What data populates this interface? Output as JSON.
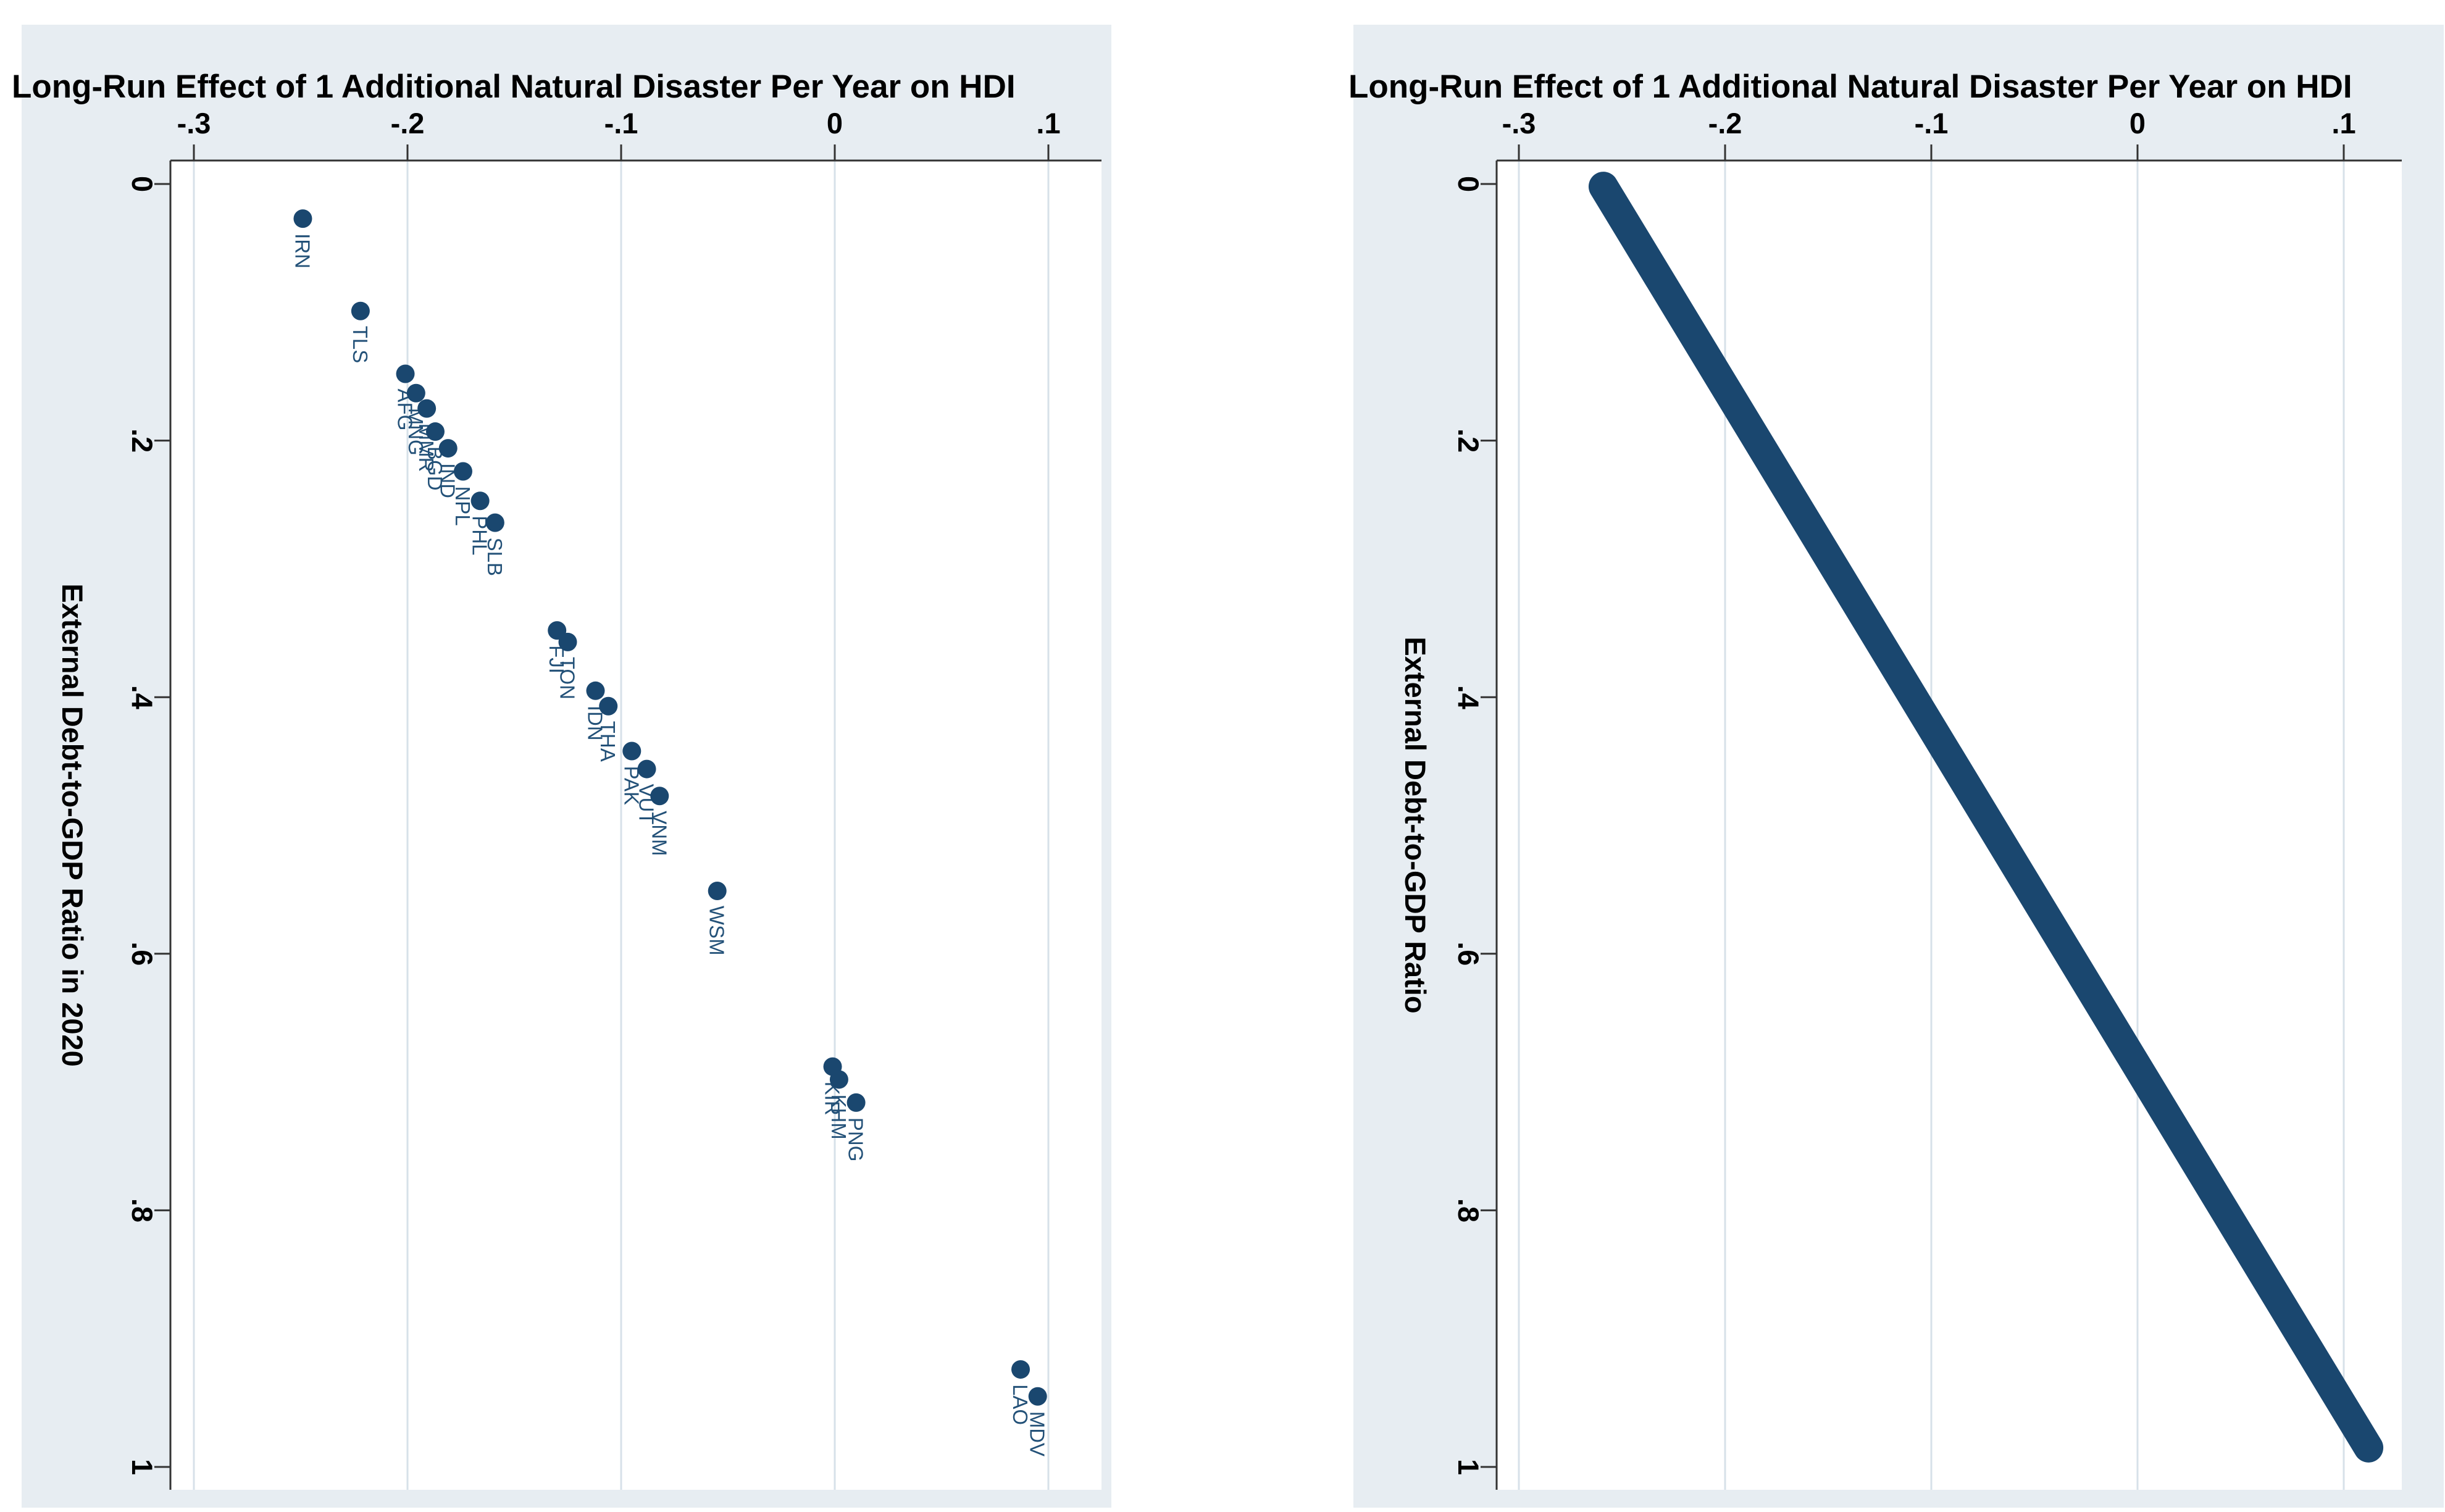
{
  "chart_data": [
    {
      "type": "scatter",
      "panel": "left",
      "title": "Long-Run Effect of 1 Additional Natural Disaster Per Year on HDI",
      "xlabel": "",
      "ylabel": "External Debt-to-GDP Ratio in 2020",
      "x_axis_position": "top",
      "y_axis_direction": "increases-downward",
      "xlim": [
        -0.312,
        0.125
      ],
      "ylim": [
        -0.02,
        1.015
      ],
      "grid": "vertical-only",
      "xticks": {
        "values": [
          -0.3,
          -0.2,
          -0.1,
          0,
          0.1
        ],
        "labels": [
          "-.3",
          "-.2",
          "-.1",
          "0",
          ".1"
        ]
      },
      "yticks": {
        "values": [
          0,
          0.2,
          0.4,
          0.6,
          0.8,
          1
        ],
        "labels": [
          "0",
          ".2",
          ".4",
          ".6",
          ".8",
          "1"
        ]
      },
      "points": [
        {
          "code": "IRN",
          "effect": -0.249,
          "debt": 0.027
        },
        {
          "code": "TLS",
          "effect": -0.222,
          "debt": 0.099
        },
        {
          "code": "AFG",
          "effect": -0.201,
          "debt": 0.148
        },
        {
          "code": "MNG",
          "effect": -0.196,
          "debt": 0.163
        },
        {
          "code": "MMR",
          "effect": -0.191,
          "debt": 0.175
        },
        {
          "code": "BGD",
          "effect": -0.187,
          "debt": 0.193
        },
        {
          "code": "IND",
          "effect": -0.181,
          "debt": 0.206
        },
        {
          "code": "NPL",
          "effect": -0.174,
          "debt": 0.224
        },
        {
          "code": "PHL",
          "effect": -0.166,
          "debt": 0.247
        },
        {
          "code": "SLB",
          "effect": -0.159,
          "debt": 0.264
        },
        {
          "code": "FJI",
          "effect": -0.13,
          "debt": 0.348
        },
        {
          "code": "TON",
          "effect": -0.125,
          "debt": 0.357
        },
        {
          "code": "IDN",
          "effect": -0.112,
          "debt": 0.395
        },
        {
          "code": "THA",
          "effect": -0.106,
          "debt": 0.407
        },
        {
          "code": "PAK",
          "effect": -0.095,
          "debt": 0.442
        },
        {
          "code": "VUT",
          "effect": -0.088,
          "debt": 0.456
        },
        {
          "code": "VNM",
          "effect": -0.082,
          "debt": 0.477
        },
        {
          "code": "WSM",
          "effect": -0.055,
          "debt": 0.551
        },
        {
          "code": "KIR",
          "effect": -0.001,
          "debt": 0.688
        },
        {
          "code": "KHM",
          "effect": 0.002,
          "debt": 0.698
        },
        {
          "code": "PNG",
          "effect": 0.01,
          "debt": 0.716
        },
        {
          "code": "LAO",
          "effect": 0.087,
          "debt": 0.924
        },
        {
          "code": "MDV",
          "effect": 0.095,
          "debt": 0.945
        }
      ],
      "colors": {
        "marker": "#1a476f",
        "point_label": "#235178",
        "grid": "#d7e1e9",
        "axis": "#333333",
        "plot_bg": "#ffffff",
        "canvas_bg": "#e7edf2",
        "text": "#000000"
      }
    },
    {
      "type": "line",
      "panel": "right",
      "title": "Long-Run Effect of 1 Additional Natural Disaster Per Year on HDI",
      "xlabel": "",
      "ylabel": "External Debt-to-GDP Ratio",
      "x_axis_position": "top",
      "y_axis_direction": "increases-downward",
      "xlim": [
        -0.312,
        0.128
      ],
      "ylim": [
        -0.02,
        1.015
      ],
      "grid": "vertical-only",
      "xticks": {
        "values": [
          -0.3,
          -0.2,
          -0.1,
          0,
          0.1
        ],
        "labels": [
          "-.3",
          "-.2",
          "-.1",
          "0",
          ".1"
        ]
      },
      "yticks": {
        "values": [
          0,
          0.2,
          0.4,
          0.6,
          0.8,
          1
        ],
        "labels": [
          "0",
          ".2",
          ".4",
          ".6",
          ".8",
          "1"
        ]
      },
      "line": {
        "x1": -0.259,
        "y1": 0.002,
        "x2": 0.112,
        "y2": 0.985
      },
      "colors": {
        "line": "#1a476f",
        "grid": "#d7e1e9",
        "axis": "#333333",
        "plot_bg": "#ffffff",
        "canvas_bg": "#e7edf2",
        "text": "#000000"
      }
    }
  ]
}
